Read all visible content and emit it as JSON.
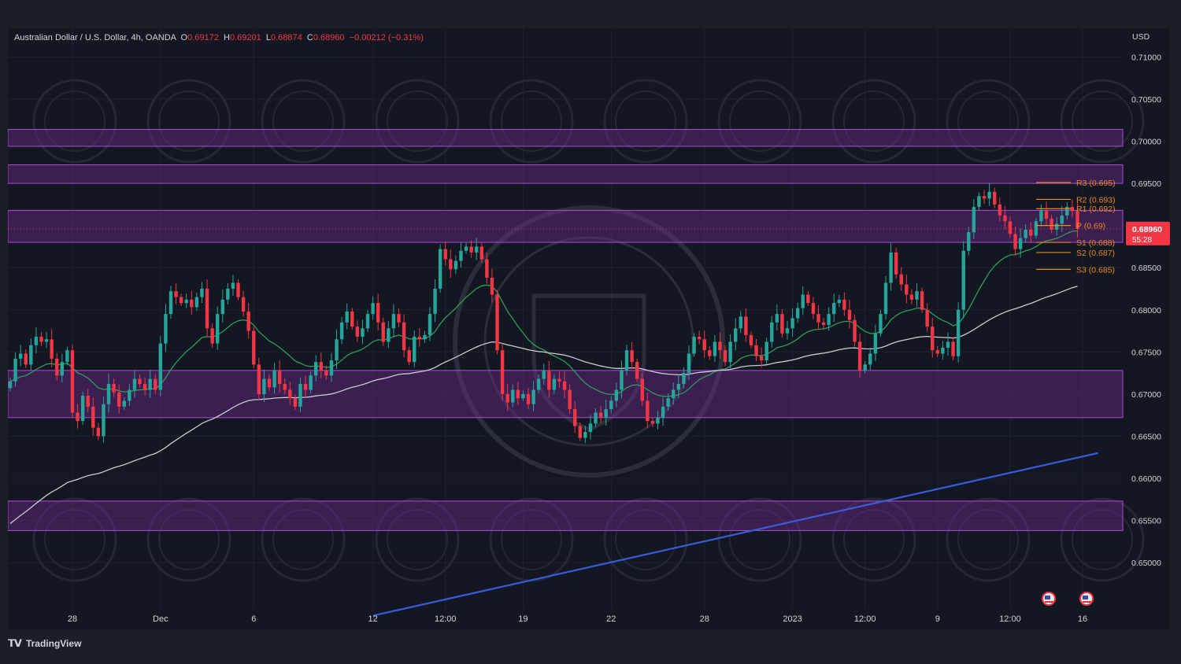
{
  "header": {
    "symbol": "Australian Dollar / U.S. Dollar, 4h, OANDA",
    "open_label": "O",
    "open": "0.69172",
    "high_label": "H",
    "high": "0.69201",
    "low_label": "L",
    "low": "0.68874",
    "close_label": "C",
    "close": "0.68960",
    "change": "−0.00212 (−0.31%)"
  },
  "brand": {
    "name": "TradingView"
  },
  "colors": {
    "background": "#131722",
    "up": "#26a69a",
    "down": "#f23645",
    "zone_fill": "#6a2a8a",
    "zone_border": "#b04ad6",
    "ma_fast": "#2e9b5f",
    "ma_slow": "#c8ccd4",
    "trendline": "#3b5bdb",
    "pivot": "#e8891c"
  },
  "chart_data": {
    "type": "candlestick",
    "currency": "USD",
    "y_ticks": [
      "0.71000",
      "0.70500",
      "0.70000",
      "0.69500",
      "0.69000",
      "0.68500",
      "0.68000",
      "0.67500",
      "0.67000",
      "0.66500",
      "0.66000",
      "0.65500",
      "0.65000"
    ],
    "ylim": [
      0.6445,
      0.7134
    ],
    "x_ticks": [
      {
        "label": "28",
        "index": 12
      },
      {
        "label": "Dec",
        "index": 29
      },
      {
        "label": "6",
        "index": 47
      },
      {
        "label": "12",
        "index": 70
      },
      {
        "label": "12:00",
        "index": 84
      },
      {
        "label": "19",
        "index": 99
      },
      {
        "label": "22",
        "index": 116
      },
      {
        "label": "28",
        "index": 134
      },
      {
        "label": "2023",
        "index": 151
      },
      {
        "label": "12:00",
        "index": 165
      },
      {
        "label": "9",
        "index": 179
      },
      {
        "label": "12:00",
        "index": 193
      },
      {
        "label": "16",
        "index": 207
      }
    ],
    "zones": [
      {
        "low": 0.6994,
        "high": 0.7014
      },
      {
        "low": 0.695,
        "high": 0.6972
      },
      {
        "low": 0.688,
        "high": 0.6918
      },
      {
        "low": 0.6672,
        "high": 0.6728
      },
      {
        "low": 0.6538,
        "high": 0.6573
      }
    ],
    "current_price": {
      "value": 0.6896,
      "label": "0.68960",
      "countdown": "55:28"
    },
    "pivots": [
      {
        "label": "R3 (0.695)",
        "value": 0.6951
      },
      {
        "label": "R2 (0.693)",
        "value": 0.6931
      },
      {
        "label": "R1 (0.692)",
        "value": 0.692
      },
      {
        "label": "P (0.69)",
        "value": 0.69
      },
      {
        "label": "S1 (0.688)",
        "value": 0.688
      },
      {
        "label": "S2 (0.687)",
        "value": 0.6868
      },
      {
        "label": "S3 (0.685)",
        "value": 0.6848
      }
    ],
    "trendline": {
      "start": {
        "index": 70,
        "value": 0.6437
      },
      "end": {
        "index": 210,
        "value": 0.663
      }
    },
    "closes": [
      0.6715,
      0.6742,
      0.6748,
      0.6735,
      0.6758,
      0.6768,
      0.6762,
      0.6765,
      0.6742,
      0.6722,
      0.6738,
      0.6752,
      0.6678,
      0.6668,
      0.6698,
      0.6685,
      0.666,
      0.665,
      0.6688,
      0.6712,
      0.6702,
      0.6685,
      0.6692,
      0.6705,
      0.6718,
      0.6712,
      0.6705,
      0.6718,
      0.6705,
      0.676,
      0.6795,
      0.6822,
      0.6815,
      0.6808,
      0.6812,
      0.6803,
      0.6815,
      0.6825,
      0.6778,
      0.676,
      0.6795,
      0.6812,
      0.6825,
      0.6832,
      0.6815,
      0.6798,
      0.6775,
      0.6735,
      0.67,
      0.6718,
      0.6708,
      0.6728,
      0.6712,
      0.6705,
      0.6695,
      0.6685,
      0.6712,
      0.6705,
      0.6722,
      0.6738,
      0.6728,
      0.6722,
      0.674,
      0.6765,
      0.6785,
      0.6798,
      0.678,
      0.6768,
      0.6778,
      0.6795,
      0.6808,
      0.6785,
      0.6762,
      0.6778,
      0.6795,
      0.6785,
      0.6752,
      0.6738,
      0.6768,
      0.6765,
      0.677,
      0.6795,
      0.6825,
      0.6872,
      0.686,
      0.6848,
      0.6858,
      0.687,
      0.6875,
      0.6868,
      0.6875,
      0.686,
      0.6838,
      0.6818,
      0.6752,
      0.67,
      0.669,
      0.6705,
      0.6695,
      0.67,
      0.6688,
      0.6705,
      0.6718,
      0.6728,
      0.6705,
      0.6718,
      0.6715,
      0.6705,
      0.6682,
      0.6662,
      0.6648,
      0.6655,
      0.6665,
      0.6678,
      0.6672,
      0.6682,
      0.6692,
      0.6705,
      0.6728,
      0.6752,
      0.6738,
      0.6718,
      0.6692,
      0.6668,
      0.6665,
      0.6672,
      0.6685,
      0.6695,
      0.6705,
      0.6712,
      0.6725,
      0.6748,
      0.6768,
      0.6765,
      0.6752,
      0.6745,
      0.6762,
      0.6752,
      0.6738,
      0.6762,
      0.6778,
      0.6792,
      0.677,
      0.6758,
      0.6745,
      0.674,
      0.6762,
      0.6785,
      0.6795,
      0.6772,
      0.6778,
      0.679,
      0.6802,
      0.6818,
      0.6808,
      0.6795,
      0.6785,
      0.6782,
      0.6795,
      0.6808,
      0.6812,
      0.68,
      0.6788,
      0.6762,
      0.6728,
      0.6735,
      0.6748,
      0.6772,
      0.6795,
      0.6832,
      0.6868,
      0.6842,
      0.683,
      0.6818,
      0.6812,
      0.6822,
      0.68,
      0.678,
      0.6752,
      0.6748,
      0.6755,
      0.6762,
      0.6745,
      0.68,
      0.687,
      0.6892,
      0.6922,
      0.6935,
      0.6932,
      0.694,
      0.6925,
      0.6912,
      0.6905,
      0.689,
      0.6872,
      0.6885,
      0.6895,
      0.6888,
      0.6905,
      0.6918,
      0.6908,
      0.6895,
      0.6902,
      0.6912,
      0.6922,
      0.6917,
      0.6896
    ]
  }
}
